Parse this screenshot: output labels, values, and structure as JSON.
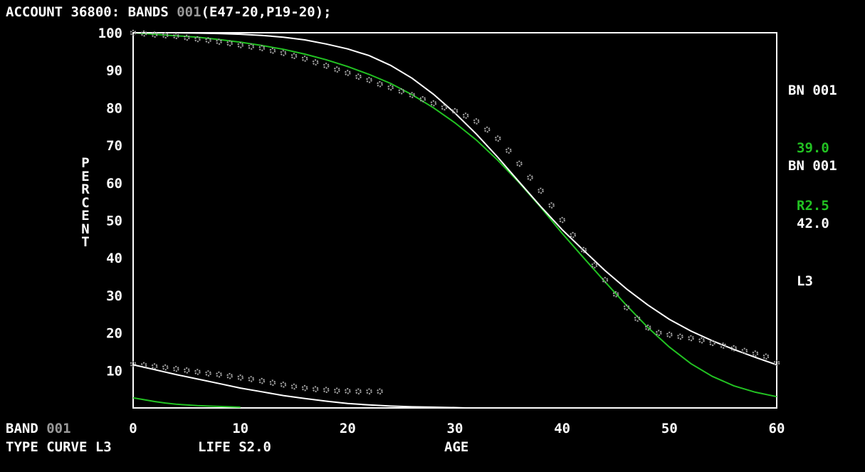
{
  "header": {
    "prefix": "ACCOUNT 36800: BANDS ",
    "band_code": "001",
    "suffix": "(E47-20,P19-20);"
  },
  "footer": {
    "band_label": "BAND",
    "band_value": "001",
    "type_curve_label": "TYPE CURVE",
    "type_curve_value": "L3",
    "life_label": "LIFE",
    "life_value": "S2.0"
  },
  "legend": [
    {
      "band": "BN 001",
      "life": "39.0",
      "curve": "R2.5",
      "color": "#22c222"
    },
    {
      "band": "BN 001",
      "life": "42.0",
      "curve": "L3",
      "color": "#ffffff"
    }
  ],
  "colors": {
    "background": "#000000",
    "frame": "#ffffff",
    "header_highlight": "#9a9a9a",
    "observed_points": "#a0a0a0",
    "fit_green": "#22c222",
    "fit_white": "#ffffff"
  },
  "chart_data": {
    "type": "line",
    "ylabel": "PERCENT",
    "xlabel": "AGE",
    "xlim": [
      0,
      60
    ],
    "ylim": [
      0,
      100
    ],
    "x_ticks": [
      0,
      10,
      20,
      30,
      40,
      50,
      60
    ],
    "y_ticks": [
      10,
      20,
      30,
      40,
      50,
      60,
      70,
      80,
      90,
      100
    ],
    "grid": false,
    "legend_position": "right",
    "series": [
      {
        "name": "BN 001 39.0 R2.5",
        "kind": "line",
        "color": "#22c222",
        "x": [
          0,
          2,
          4,
          6,
          8,
          10,
          12,
          14,
          16,
          18,
          20,
          22,
          24,
          26,
          28,
          30,
          32,
          34,
          36,
          38,
          40,
          42,
          44,
          46,
          48,
          50,
          52,
          54,
          56,
          58,
          60
        ],
        "y": [
          100,
          99.6,
          99.2,
          98.8,
          98.2,
          97.5,
          96.6,
          95.6,
          94.3,
          92.8,
          91.0,
          88.9,
          86.5,
          83.5,
          80.0,
          76.0,
          71.4,
          66.0,
          60.0,
          53.5,
          46.5,
          40.0,
          33.6,
          27.3,
          21.4,
          16.2,
          11.8,
          8.4,
          5.9,
          4.2,
          3.0
        ]
      },
      {
        "name": "BN 001 42.0 L3",
        "kind": "line",
        "color": "#ffffff",
        "x": [
          0,
          2,
          4,
          6,
          8,
          10,
          12,
          14,
          16,
          18,
          20,
          22,
          24,
          26,
          28,
          30,
          32,
          34,
          36,
          38,
          40,
          42,
          44,
          46,
          48,
          50,
          52,
          54,
          56,
          58,
          60
        ],
        "y": [
          100,
          100,
          100,
          99.9,
          99.8,
          99.6,
          99.3,
          98.8,
          98.1,
          97.0,
          95.7,
          93.9,
          91.3,
          87.9,
          83.6,
          78.6,
          73.0,
          66.8,
          60.2,
          53.7,
          47.5,
          42.0,
          36.6,
          31.7,
          27.4,
          23.6,
          20.5,
          17.9,
          15.6,
          13.5,
          11.5
        ]
      },
      {
        "name": "observed",
        "kind": "scatter",
        "color": "#a0a0a0",
        "x": [
          0,
          1,
          2,
          3,
          4,
          5,
          6,
          7,
          8,
          9,
          10,
          11,
          12,
          13,
          14,
          15,
          16,
          17,
          18,
          19,
          20,
          21,
          22,
          23,
          24,
          25,
          26,
          27,
          28,
          29,
          30,
          31,
          32,
          33,
          34,
          35,
          36,
          37,
          38,
          39,
          40,
          41,
          42,
          43,
          44,
          45,
          46,
          47,
          48,
          49,
          50,
          51,
          52,
          53,
          54,
          55,
          56,
          57,
          58,
          59,
          60
        ],
        "y": [
          100,
          99.8,
          99.5,
          99.3,
          99.1,
          98.7,
          98.3,
          98.0,
          97.6,
          97.2,
          96.7,
          96.3,
          95.9,
          95.2,
          94.6,
          93.8,
          93.1,
          92.1,
          91.2,
          90.2,
          89.3,
          88.3,
          87.4,
          86.3,
          85.4,
          84.4,
          83.4,
          82.3,
          81.2,
          80.1,
          79.1,
          77.9,
          76.4,
          74.2,
          71.8,
          68.6,
          65.1,
          61.4,
          57.9,
          54.0,
          50.1,
          46.1,
          42.1,
          38.0,
          34.1,
          30.3,
          26.8,
          23.8,
          21.4,
          20.0,
          19.5,
          19.0,
          18.6,
          18.0,
          17.3,
          16.6,
          15.9,
          15.2,
          14.5,
          13.7,
          12.0
        ]
      },
      {
        "name": "lower-observed",
        "kind": "scatter",
        "color": "#a0a0a0",
        "x": [
          0,
          1,
          2,
          3,
          4,
          5,
          6,
          7,
          8,
          9,
          10,
          11,
          12,
          13,
          14,
          15,
          16,
          17,
          18,
          19,
          20,
          21,
          22,
          23
        ],
        "y": [
          11.7,
          11.4,
          11.1,
          10.8,
          10.4,
          10.0,
          9.6,
          9.2,
          8.9,
          8.5,
          8.1,
          7.7,
          7.2,
          6.7,
          6.2,
          5.7,
          5.3,
          5.0,
          4.8,
          4.6,
          4.5,
          4.4,
          4.4,
          4.4
        ]
      },
      {
        "name": "lower-white",
        "kind": "line",
        "color": "#ffffff",
        "x": [
          0,
          2,
          4,
          6,
          8,
          10,
          12,
          14,
          16,
          18,
          20,
          22,
          24,
          26,
          28,
          30,
          31
        ],
        "y": [
          11.5,
          10.2,
          8.9,
          7.7,
          6.5,
          5.3,
          4.3,
          3.3,
          2.5,
          1.8,
          1.2,
          0.8,
          0.5,
          0.3,
          0.2,
          0.1,
          0
        ]
      },
      {
        "name": "lower-green",
        "kind": "line",
        "color": "#22c222",
        "x": [
          0,
          1,
          2,
          3,
          4,
          5,
          6,
          7,
          8,
          9,
          10
        ],
        "y": [
          2.7,
          2.2,
          1.7,
          1.3,
          1.0,
          0.8,
          0.6,
          0.5,
          0.4,
          0.3,
          0.2
        ]
      }
    ]
  }
}
